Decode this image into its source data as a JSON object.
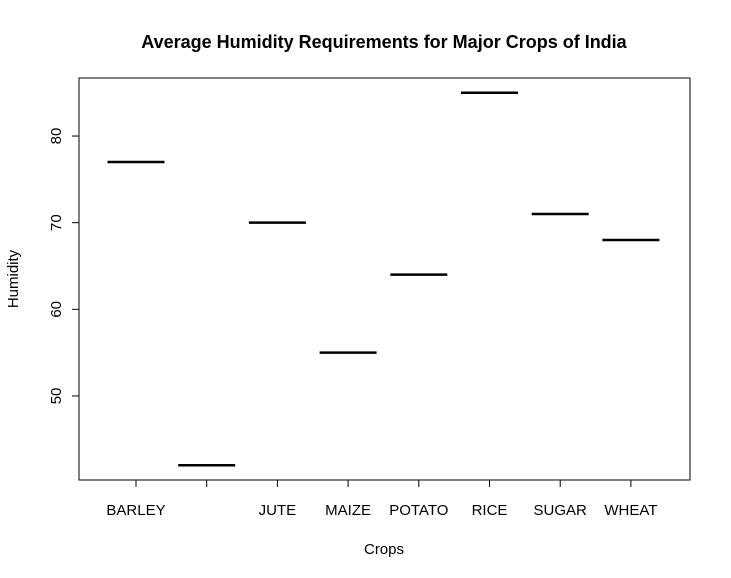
{
  "chart_data": {
    "type": "bar",
    "title": "Average Humidity Requirements for Major Crops of India",
    "xlabel": "Crops",
    "ylabel": "Humidity",
    "categories": [
      "BARLEY",
      "",
      "JUTE",
      "MAIZE",
      "POTATO",
      "RICE",
      "SUGAR",
      "WHEAT"
    ],
    "values": [
      77,
      42,
      70,
      55,
      64,
      85,
      71,
      68
    ],
    "yticks": [
      50,
      60,
      70,
      80
    ],
    "ylim": [
      40.3,
      86.7
    ],
    "grid": false,
    "legend": "none",
    "colors": {
      "mark": "#000000",
      "axis": "#000000",
      "background": "#ffffff"
    }
  }
}
